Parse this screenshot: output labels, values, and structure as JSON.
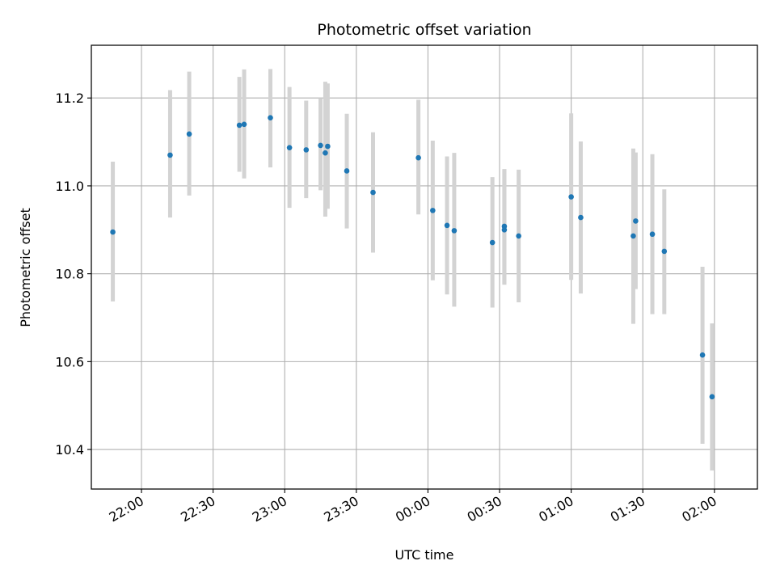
{
  "chart_data": {
    "type": "scatter",
    "title": "Photometric offset variation",
    "xlabel": "UTC time",
    "ylabel": "Photometric offset",
    "x_axis_kind": "time",
    "xlim": [
      "21:39",
      "02:18"
    ],
    "ylim": [
      10.31,
      11.32
    ],
    "x_ticks": [
      "22:00",
      "22:30",
      "23:00",
      "23:30",
      "00:00",
      "00:30",
      "01:00",
      "01:30",
      "02:00"
    ],
    "y_ticks": [
      "10.4",
      "10.6",
      "10.8",
      "11.0",
      "11.2"
    ],
    "grid": true,
    "colors": {
      "point": "#1f77b4",
      "errorbar": "#d3d3d3",
      "grid": "#b0b0b0"
    },
    "points": [
      {
        "time": "21:48",
        "y": 10.895,
        "low": 10.737,
        "high": 11.055
      },
      {
        "time": "22:12",
        "y": 11.07,
        "low": 10.928,
        "high": 11.218
      },
      {
        "time": "22:20",
        "y": 11.118,
        "low": 10.978,
        "high": 11.26
      },
      {
        "time": "22:41",
        "y": 11.138,
        "low": 11.032,
        "high": 11.248
      },
      {
        "time": "22:43",
        "y": 11.14,
        "low": 11.017,
        "high": 11.265
      },
      {
        "time": "22:54",
        "y": 11.155,
        "low": 11.042,
        "high": 11.266
      },
      {
        "time": "23:02",
        "y": 11.087,
        "low": 10.95,
        "high": 11.225
      },
      {
        "time": "23:09",
        "y": 11.082,
        "low": 10.972,
        "high": 11.194
      },
      {
        "time": "23:15",
        "y": 11.092,
        "low": 10.99,
        "high": 11.2
      },
      {
        "time": "23:17",
        "y": 11.075,
        "low": 10.93,
        "high": 11.237
      },
      {
        "time": "23:18",
        "y": 11.09,
        "low": 10.948,
        "high": 11.233
      },
      {
        "time": "23:26",
        "y": 11.034,
        "low": 10.903,
        "high": 11.164
      },
      {
        "time": "23:37",
        "y": 10.985,
        "low": 10.848,
        "high": 11.122
      },
      {
        "time": "23:56",
        "y": 11.064,
        "low": 10.935,
        "high": 11.196
      },
      {
        "time": "00:02",
        "y": 10.944,
        "low": 10.785,
        "high": 11.103
      },
      {
        "time": "00:08",
        "y": 10.91,
        "low": 10.753,
        "high": 11.067
      },
      {
        "time": "00:11",
        "y": 10.898,
        "low": 10.725,
        "high": 11.075
      },
      {
        "time": "00:27",
        "y": 10.871,
        "low": 10.723,
        "high": 11.02
      },
      {
        "time": "00:32",
        "y": 10.9,
        "low": 10.775,
        "high": 11.038
      },
      {
        "time": "00:32",
        "y": 10.908,
        "low": 10.776,
        "high": 11.038
      },
      {
        "time": "00:38",
        "y": 10.886,
        "low": 10.735,
        "high": 11.037
      },
      {
        "time": "01:00",
        "y": 10.975,
        "low": 10.786,
        "high": 11.165
      },
      {
        "time": "01:04",
        "y": 10.928,
        "low": 10.755,
        "high": 11.101
      },
      {
        "time": "01:26",
        "y": 10.886,
        "low": 10.686,
        "high": 11.085
      },
      {
        "time": "01:27",
        "y": 10.92,
        "low": 10.765,
        "high": 11.076
      },
      {
        "time": "01:34",
        "y": 10.89,
        "low": 10.708,
        "high": 11.072
      },
      {
        "time": "01:39",
        "y": 10.851,
        "low": 10.708,
        "high": 10.992
      },
      {
        "time": "01:55",
        "y": 10.615,
        "low": 10.413,
        "high": 10.816
      },
      {
        "time": "01:59",
        "y": 10.52,
        "low": 10.352,
        "high": 10.687
      }
    ]
  }
}
